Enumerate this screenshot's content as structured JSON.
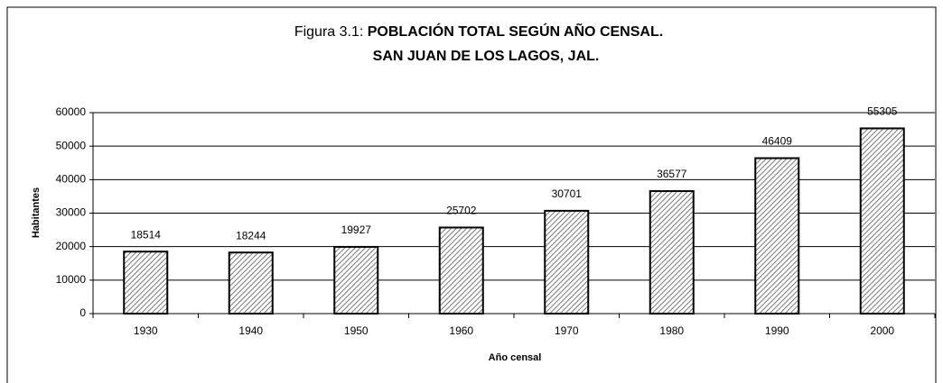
{
  "chart_data": {
    "type": "bar",
    "title_label": "Figura 3.1:",
    "title": [
      "POBLACIÓN TOTAL SEGÚN AÑO CENSAL.",
      "SAN JUAN DE LOS LAGOS, JAL."
    ],
    "x_label": "Año censal",
    "y_label": "Habitantes",
    "categories": [
      "1930",
      "1940",
      "1950",
      "1960",
      "1970",
      "1980",
      "1990",
      "2000"
    ],
    "values": [
      18514,
      18244,
      19927,
      25702,
      30701,
      36577,
      46409,
      55305
    ],
    "color": "#333333",
    "ylim": [
      0,
      60000
    ],
    "yticks": [
      0,
      10000,
      20000,
      30000,
      40000,
      50000,
      60000
    ],
    "grid": true
  }
}
